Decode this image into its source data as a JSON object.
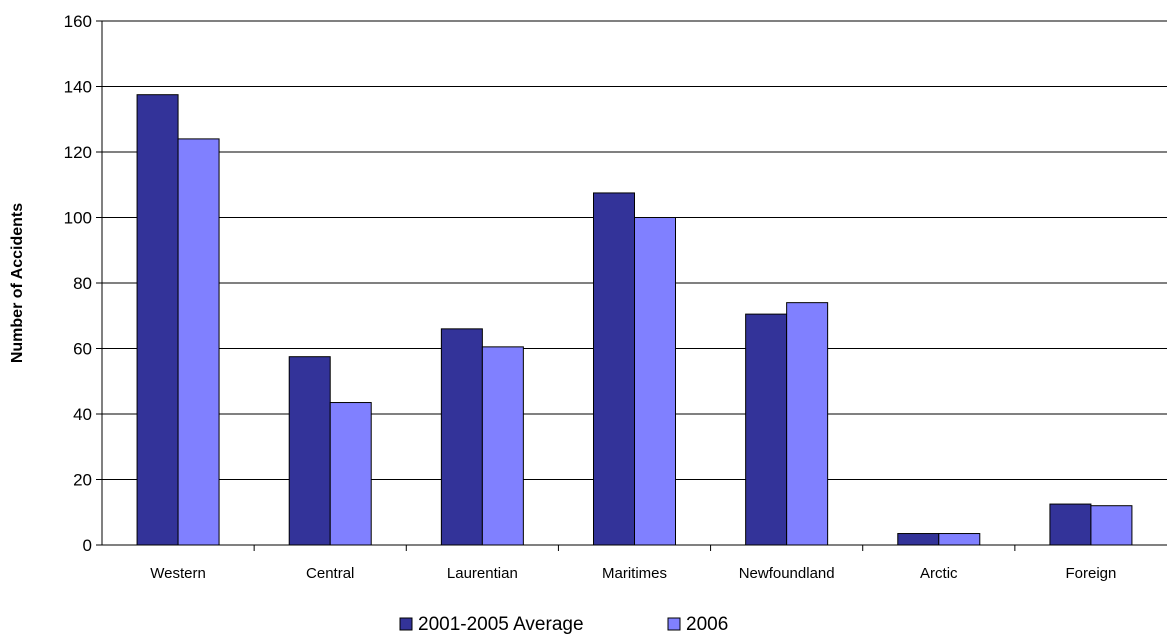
{
  "chart_data": {
    "type": "bar",
    "title": "",
    "xlabel": "",
    "ylabel": "Number of Accidents",
    "ylim": [
      0,
      160
    ],
    "yticks": [
      0,
      20,
      40,
      60,
      80,
      100,
      120,
      140,
      160
    ],
    "grid": true,
    "legend_position": "bottom",
    "categories": [
      "Western",
      "Central",
      "Laurentian",
      "Maritimes",
      "Newfoundland",
      "Arctic",
      "Foreign"
    ],
    "series": [
      {
        "name": "2001-2005 Average",
        "color": "#333399",
        "values": [
          137.5,
          57.5,
          66,
          107.5,
          70.5,
          3.5,
          12.5
        ]
      },
      {
        "name": "2006",
        "color": "#8080ff",
        "values": [
          124,
          43.5,
          60.5,
          100,
          74,
          3.5,
          12
        ]
      }
    ]
  }
}
